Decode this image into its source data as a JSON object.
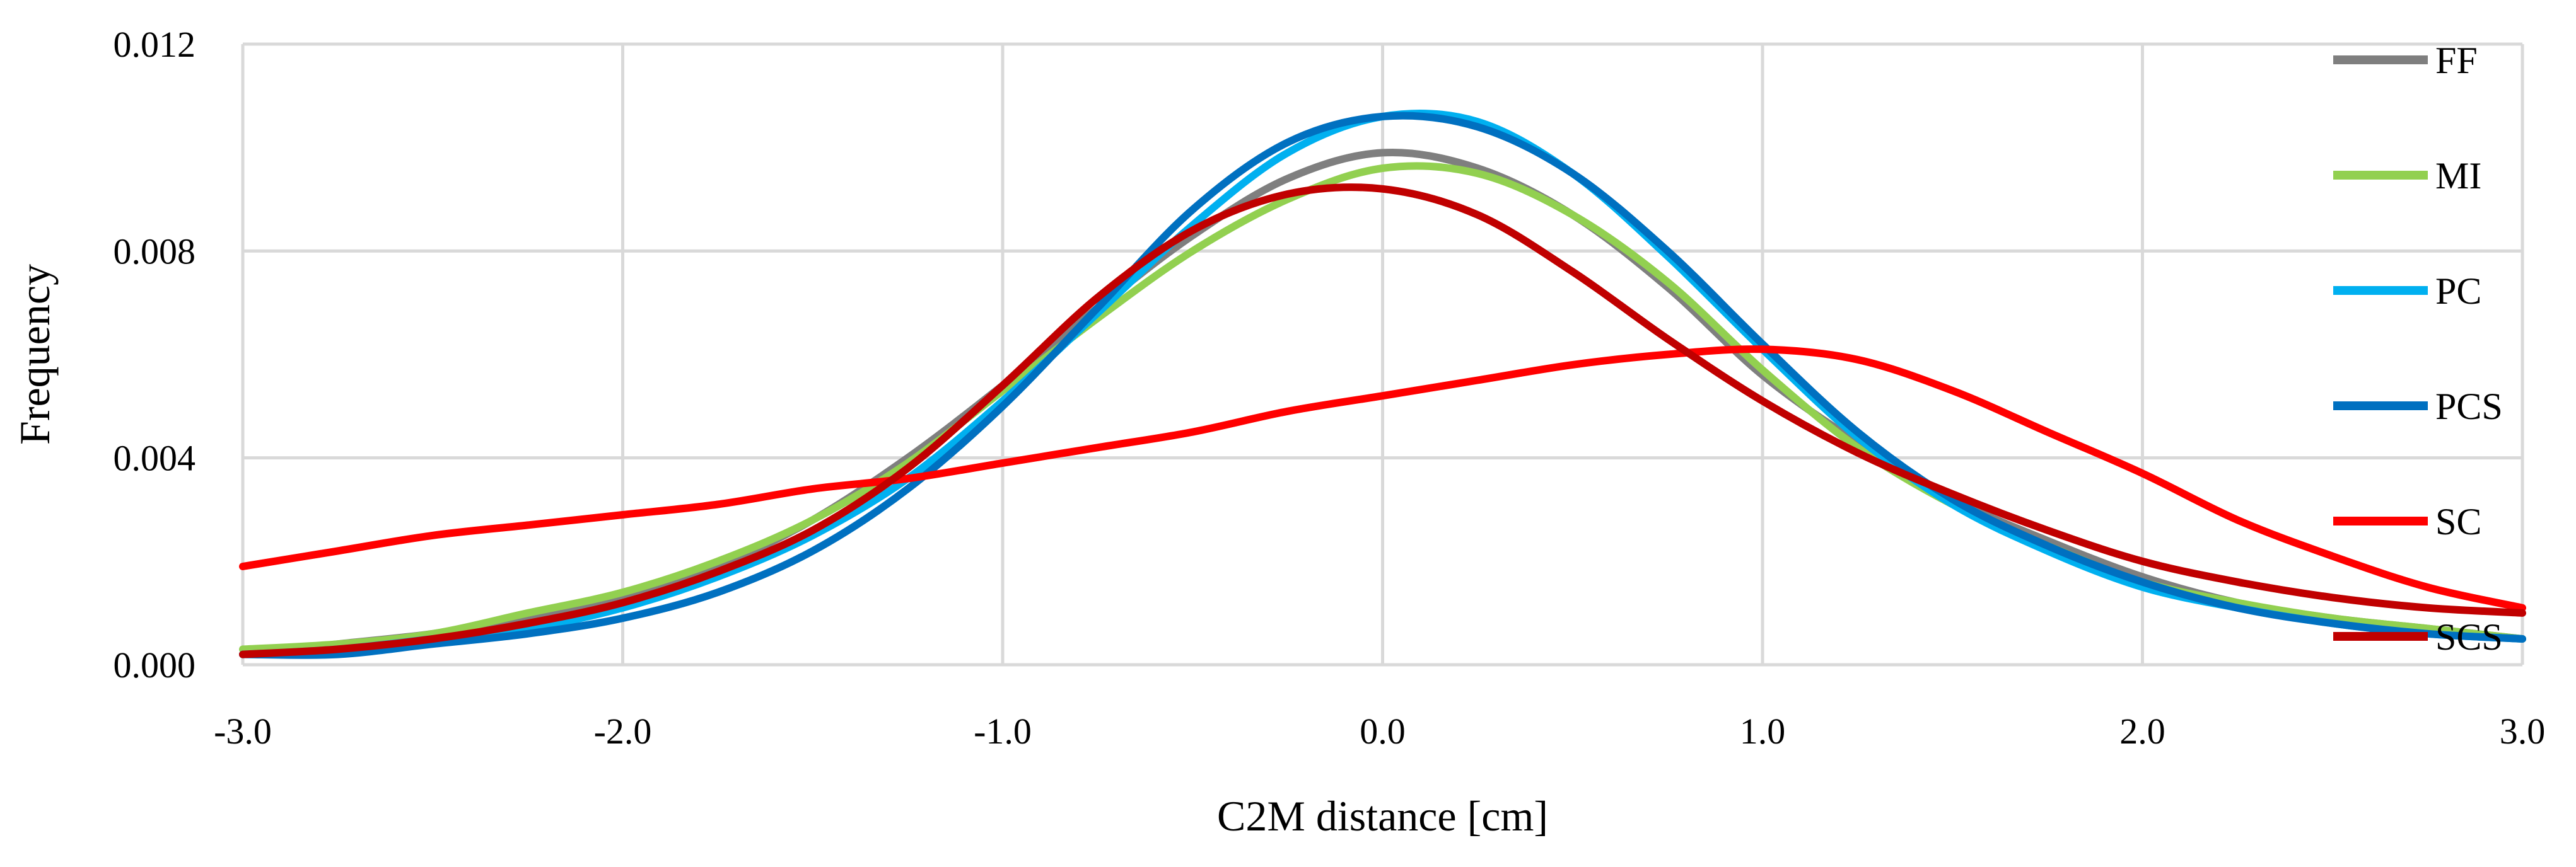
{
  "chart_data": {
    "type": "line",
    "title": "",
    "xlabel": "C2M distance [cm]",
    "ylabel": "Frequency",
    "xlim": [
      -3.0,
      3.0
    ],
    "ylim": [
      0.0,
      0.012
    ],
    "grid": true,
    "legend_position": "right",
    "x_ticks": [
      -3.0,
      -2.0,
      -1.0,
      0.0,
      1.0,
      2.0,
      3.0
    ],
    "x_tick_labels": [
      "-3.0",
      "-2.0",
      "-1.0",
      "0.0",
      "1.0",
      "2.0",
      "3.0"
    ],
    "y_ticks": [
      0.0,
      0.004,
      0.008,
      0.012
    ],
    "y_tick_labels": [
      "0.000",
      "0.004",
      "0.008",
      "0.012"
    ],
    "x": [
      -3.0,
      -2.75,
      -2.5,
      -2.25,
      -2.0,
      -1.75,
      -1.5,
      -1.25,
      -1.0,
      -0.75,
      -0.5,
      -0.25,
      0.0,
      0.25,
      0.5,
      0.75,
      1.0,
      1.25,
      1.5,
      1.75,
      2.0,
      2.25,
      2.5,
      2.75,
      3.0
    ],
    "series": [
      {
        "name": "FF",
        "color": "#7f7f7f",
        "values": [
          0.0002,
          0.0004,
          0.0006,
          0.0009,
          0.0013,
          0.0019,
          0.0028,
          0.004,
          0.0054,
          0.0069,
          0.0083,
          0.0094,
          0.0099,
          0.0096,
          0.0087,
          0.0073,
          0.0056,
          0.0043,
          0.0032,
          0.0024,
          0.0017,
          0.0012,
          0.0009,
          0.0007,
          0.0005
        ]
      },
      {
        "name": "MI",
        "color": "#92d050",
        "values": [
          0.0003,
          0.0004,
          0.0006,
          0.001,
          0.0014,
          0.002,
          0.0028,
          0.0039,
          0.0053,
          0.0067,
          0.008,
          0.009,
          0.0096,
          0.0095,
          0.0087,
          0.0074,
          0.0057,
          0.0042,
          0.0031,
          0.0023,
          0.0016,
          0.0012,
          0.0009,
          0.0007,
          0.0005
        ]
      },
      {
        "name": "PC",
        "color": "#00b0f0",
        "values": [
          0.0002,
          0.0003,
          0.0005,
          0.0007,
          0.0011,
          0.0017,
          0.0025,
          0.0036,
          0.0051,
          0.0068,
          0.0085,
          0.0099,
          0.0106,
          0.0105,
          0.0095,
          0.0079,
          0.0061,
          0.0044,
          0.0031,
          0.0022,
          0.0015,
          0.0011,
          0.0008,
          0.0006,
          0.0005
        ]
      },
      {
        "name": "PCS",
        "color": "#0070c0",
        "values": [
          0.0002,
          0.0002,
          0.0004,
          0.0006,
          0.0009,
          0.0014,
          0.0022,
          0.0034,
          0.005,
          0.0069,
          0.0088,
          0.0101,
          0.0106,
          0.0104,
          0.0095,
          0.008,
          0.0062,
          0.0045,
          0.0032,
          0.0023,
          0.0016,
          0.0011,
          0.0008,
          0.0006,
          0.0005
        ]
      },
      {
        "name": "SC",
        "color": "#ff0000",
        "values": [
          0.0019,
          0.0022,
          0.0025,
          0.0027,
          0.0029,
          0.0031,
          0.0034,
          0.0036,
          0.0039,
          0.0042,
          0.0045,
          0.0049,
          0.0052,
          0.0055,
          0.0058,
          0.006,
          0.0061,
          0.0059,
          0.0053,
          0.0045,
          0.0037,
          0.0028,
          0.0021,
          0.0015,
          0.0011
        ]
      },
      {
        "name": "SCS",
        "color": "#c00000",
        "values": [
          0.0002,
          0.0003,
          0.0005,
          0.0008,
          0.0012,
          0.0018,
          0.0026,
          0.0038,
          0.0054,
          0.0071,
          0.0084,
          0.0091,
          0.0092,
          0.0087,
          0.0076,
          0.0063,
          0.0051,
          0.0041,
          0.0033,
          0.0026,
          0.002,
          0.0016,
          0.0013,
          0.0011,
          0.001
        ]
      }
    ]
  }
}
